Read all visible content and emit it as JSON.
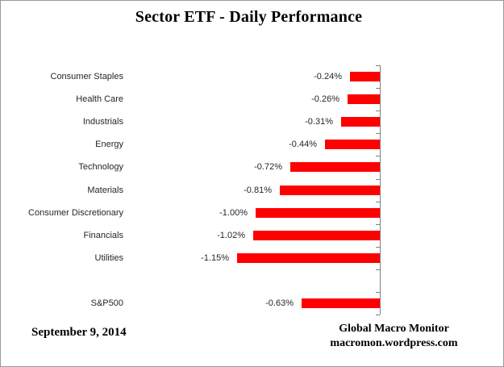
{
  "title": "Sector ETF - Daily Performance",
  "footer": {
    "date": "September 9, 2014",
    "source_line1": "Global Macro Monitor",
    "source_line2": "macromon.wordpress.com"
  },
  "colors": {
    "bar": "#ff0000",
    "axis": "#808080",
    "text": "#262626"
  },
  "chart_data": {
    "type": "bar",
    "orientation": "horizontal",
    "title": "Sector ETF - Daily Performance",
    "xlabel": "",
    "ylabel": "",
    "xlim": [
      -1.25,
      0
    ],
    "grid": false,
    "legend": "none",
    "bar_color": "#ff0000",
    "categories": [
      "Consumer Staples",
      "Health Care",
      "Industrials",
      "Energy",
      "Technology",
      "Materials",
      "Consumer Discretionary",
      "Financials",
      "Utilities",
      "",
      "S&P500"
    ],
    "values": [
      -0.24,
      -0.26,
      -0.31,
      -0.44,
      -0.72,
      -0.81,
      -1.0,
      -1.02,
      -1.15,
      null,
      -0.63
    ],
    "data_labels": [
      "-0.24%",
      "-0.26%",
      "-0.31%",
      "-0.44%",
      "-0.72%",
      "-0.81%",
      "-1.00%",
      "-1.02%",
      "-1.15%",
      "",
      "-0.63%"
    ]
  }
}
